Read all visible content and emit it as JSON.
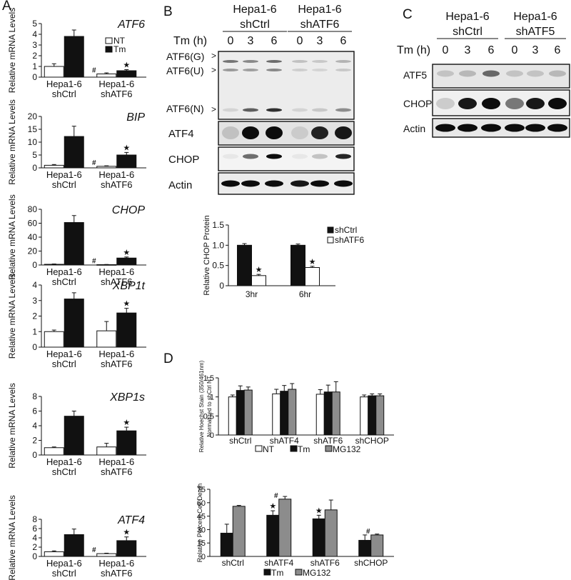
{
  "figure": {
    "panel_labels": {
      "a": "A",
      "b": "B",
      "c": "C",
      "d": "D"
    },
    "legend_a": {
      "nt": "NT",
      "tm": "Tm"
    },
    "blot_b": {
      "groups": [
        {
          "line1": "Hepa1-6",
          "line2": "shCtrl"
        },
        {
          "line1": "Hepa1-6",
          "line2": "shATF6"
        }
      ],
      "time_label": "Tm (h)",
      "times": [
        "0",
        "3",
        "6",
        "0",
        "3",
        "6"
      ],
      "atf6_labels": [
        "ATF6(G)",
        "ATF6(U)",
        "ATF6(N)"
      ],
      "rows": [
        "ATF4",
        "CHOP",
        "Actin"
      ],
      "markers": [
        ">",
        ">",
        ">"
      ]
    },
    "blot_c": {
      "groups": [
        {
          "line1": "Hepa1-6",
          "line2": "shCtrl"
        },
        {
          "line1": "Hepa1-6",
          "line2": "shATF5"
        }
      ],
      "time_label": "Tm (h)",
      "times": [
        "0",
        "3",
        "6",
        "0",
        "3",
        "6"
      ],
      "rows": [
        "ATF5",
        "CHOP",
        "Actin"
      ]
    }
  },
  "chart_data": [
    {
      "id": "atf6",
      "type": "bar",
      "title": "ATF6",
      "ylabel": "Relative mRNA Levels",
      "categories": [
        "Hepa1-6\nshCtrl",
        "Hepa1-6\nshATF6"
      ],
      "ylim": [
        0,
        5
      ],
      "yticks": [
        0,
        1,
        2,
        3,
        4,
        5
      ],
      "series": [
        {
          "name": "NT",
          "values": [
            1.0,
            0.3
          ],
          "errors": [
            0.25,
            0.1
          ]
        },
        {
          "name": "Tm",
          "values": [
            3.8,
            0.6
          ],
          "errors": [
            0.6,
            0.1
          ]
        }
      ],
      "annotations": [
        [
          "",
          "#"
        ],
        [
          "",
          "★"
        ]
      ]
    },
    {
      "id": "bip",
      "type": "bar",
      "title": "BIP",
      "ylabel": "Relative mRNA Levels",
      "categories": [
        "Hepa1-6\nshCtrl",
        "Hepa1-6\nshATF6"
      ],
      "ylim": [
        0,
        20
      ],
      "yticks": [
        0,
        5,
        10,
        15,
        20
      ],
      "series": [
        {
          "name": "NT",
          "values": [
            1.0,
            0.6
          ],
          "errors": [
            0.3,
            0.2
          ]
        },
        {
          "name": "Tm",
          "values": [
            12.2,
            5.0
          ],
          "errors": [
            4.0,
            1.0
          ]
        }
      ],
      "annotations": [
        [
          "",
          "#"
        ],
        [
          "",
          "★"
        ]
      ]
    },
    {
      "id": "chop",
      "type": "bar",
      "title": "CHOP",
      "ylabel": "Relative mRNA Levels",
      "categories": [
        "Hepa1-6\nshCtrl",
        "Hepa1-6\nshATF6"
      ],
      "ylim": [
        0,
        80
      ],
      "yticks": [
        0,
        20,
        40,
        60,
        80
      ],
      "series": [
        {
          "name": "NT",
          "values": [
            1.0,
            0.5
          ],
          "errors": [
            0.5,
            0.3
          ]
        },
        {
          "name": "Tm",
          "values": [
            61,
            10
          ],
          "errors": [
            10,
            1.5
          ]
        }
      ],
      "annotations": [
        [
          "",
          "#"
        ],
        [
          "",
          "★"
        ]
      ]
    },
    {
      "id": "xbp1t",
      "type": "bar",
      "title": "XBP1t",
      "ylabel": "Relative mRNA Levels",
      "categories": [
        "Hepa1-6\nshCtrl",
        "Hepa1-6\nshATF6"
      ],
      "ylim": [
        0,
        4
      ],
      "yticks": [
        0,
        1,
        2,
        3,
        4
      ],
      "series": [
        {
          "name": "NT",
          "values": [
            1.0,
            1.05
          ],
          "errors": [
            0.1,
            0.6
          ]
        },
        {
          "name": "Tm",
          "values": [
            3.1,
            2.2
          ],
          "errors": [
            0.4,
            0.3
          ]
        }
      ],
      "annotations": [
        [
          "",
          ""
        ],
        [
          "",
          "★"
        ]
      ]
    },
    {
      "id": "xbp1s",
      "type": "bar",
      "title": "XBP1s",
      "ylabel": "Relative mRNA Levels",
      "categories": [
        "Hepa1-6\nshCtrl",
        "Hepa1-6\nshATF6"
      ],
      "ylim": [
        0,
        8
      ],
      "yticks": [
        0,
        2,
        4,
        6,
        8
      ],
      "series": [
        {
          "name": "NT",
          "values": [
            1.0,
            1.1
          ],
          "errors": [
            0.1,
            0.5
          ]
        },
        {
          "name": "Tm",
          "values": [
            5.3,
            3.3
          ],
          "errors": [
            0.7,
            0.5
          ]
        }
      ],
      "annotations": [
        [
          "",
          ""
        ],
        [
          "",
          "★"
        ]
      ]
    },
    {
      "id": "atf4",
      "type": "bar",
      "title": "ATF4",
      "ylabel": "Relative mRNA Levels",
      "categories": [
        "Hepa1-6\nshCtrl",
        "Hepa1-6\nshATF6"
      ],
      "ylim": [
        0,
        8
      ],
      "yticks": [
        0,
        2,
        4,
        6,
        8
      ],
      "series": [
        {
          "name": "NT",
          "values": [
            1.0,
            0.6
          ],
          "errors": [
            0.2,
            0.1
          ]
        },
        {
          "name": "Tm",
          "values": [
            4.7,
            3.4
          ],
          "errors": [
            1.2,
            0.8
          ]
        }
      ],
      "annotations": [
        [
          "",
          "#"
        ],
        [
          "",
          "★"
        ]
      ]
    },
    {
      "id": "b_chop",
      "type": "bar",
      "title": "",
      "ylabel": "Relative CHOP Protein",
      "categories": [
        "3hr",
        "6hr"
      ],
      "ylim": [
        0,
        1.5
      ],
      "yticks": [
        0,
        0.5,
        1.0,
        1.5
      ],
      "ytick_labels": [
        "0",
        "0.5",
        "1.0",
        "1.5"
      ],
      "series": [
        {
          "name": "shCtrl",
          "values": [
            1.0,
            1.0
          ],
          "errors": [
            0.04,
            0.03
          ]
        },
        {
          "name": "shATF6",
          "values": [
            0.25,
            0.45
          ],
          "errors": [
            0.03,
            0.03
          ]
        }
      ],
      "annotations": [
        [
          "",
          ""
        ],
        [
          "★",
          "★"
        ]
      ],
      "legend": "top-right"
    },
    {
      "id": "d_hoechst",
      "type": "bar",
      "title": "",
      "ylabel": [
        "Relative Hoechst Stain (350/461nm)",
        "Normalized to shCtrl NT"
      ],
      "categories": [
        "shCtrl",
        "shATF4",
        "shATF6",
        "shCHOP"
      ],
      "ylim": [
        0,
        1.5
      ],
      "yticks": [
        0,
        0.5,
        1,
        1.5
      ],
      "ytick_labels": [
        "0",
        "0.5",
        "1",
        "1.5"
      ],
      "series": [
        {
          "name": "NT",
          "values": [
            1.0,
            1.08,
            1.07,
            1.0
          ],
          "errors": [
            0.05,
            0.12,
            0.12,
            0.05
          ]
        },
        {
          "name": "Tm",
          "values": [
            1.17,
            1.15,
            1.13,
            1.03
          ],
          "errors": [
            0.12,
            0.15,
            0.18,
            0.05
          ]
        },
        {
          "name": "MG132",
          "values": [
            1.18,
            1.2,
            1.13,
            1.03
          ],
          "errors": [
            0.08,
            0.15,
            0.27,
            0.05
          ]
        }
      ],
      "legend": "bottom"
    },
    {
      "id": "d_death",
      "type": "bar",
      "title": "",
      "ylabel": "Relative Percent Cell Death",
      "categories": [
        "shCtrl",
        "shATF4",
        "shATF6",
        "shCHOP"
      ],
      "ylim": [
        0,
        75
      ],
      "yticks": [
        0,
        15,
        30,
        45,
        60,
        75
      ],
      "series": [
        {
          "name": "Tm",
          "values": [
            26,
            46,
            42,
            18
          ],
          "errors": [
            10,
            5,
            4,
            6
          ]
        },
        {
          "name": "MG132",
          "values": [
            56,
            64,
            52,
            24
          ],
          "errors": [
            1,
            3,
            11,
            1
          ]
        }
      ],
      "annotations": [
        [
          "",
          "★",
          "★",
          ""
        ],
        [
          "",
          "#",
          "",
          "#"
        ]
      ],
      "legend": "bottom"
    }
  ]
}
